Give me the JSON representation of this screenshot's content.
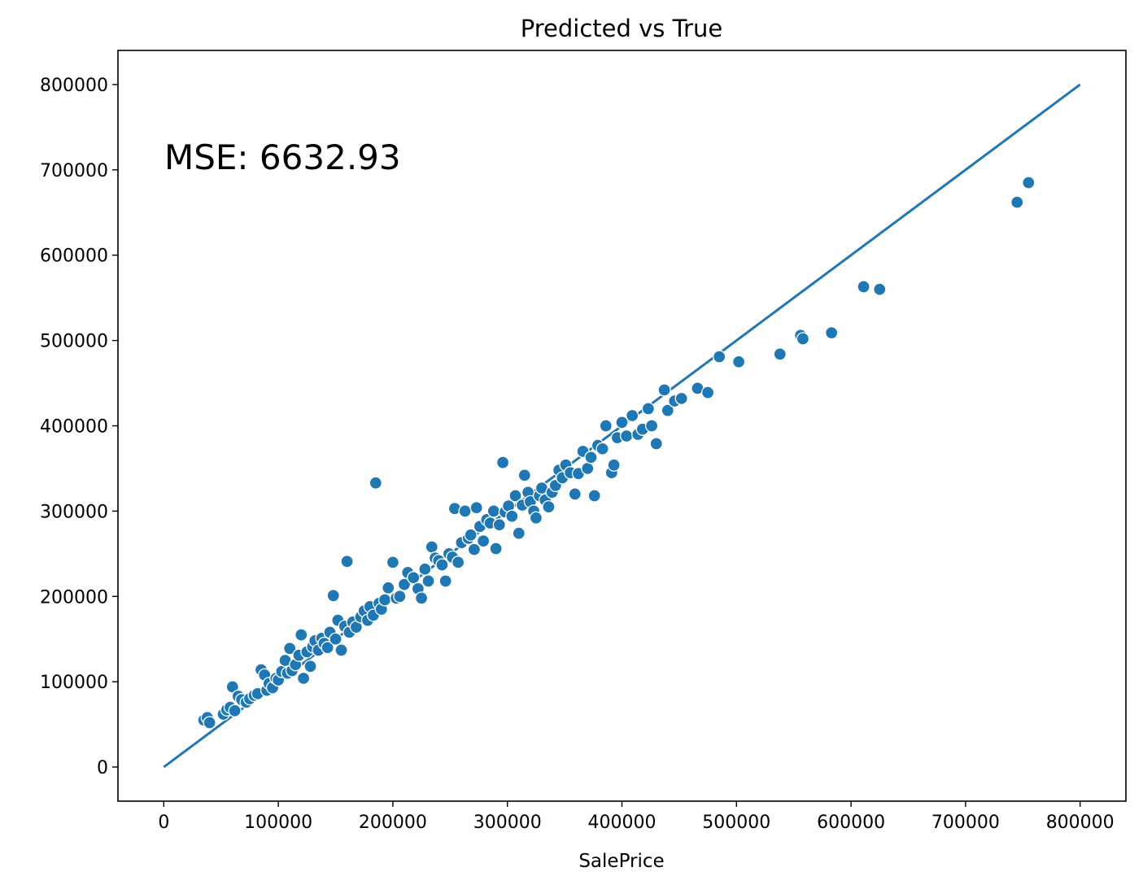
{
  "chart_data": {
    "type": "scatter",
    "title": "Predicted vs True",
    "xlabel": "SalePrice",
    "ylabel": "",
    "xlim": [
      -40000,
      840000
    ],
    "ylim": [
      -40000,
      840000
    ],
    "x_ticks": [
      0,
      100000,
      200000,
      300000,
      400000,
      500000,
      600000,
      700000,
      800000
    ],
    "y_ticks": [
      0,
      100000,
      200000,
      300000,
      400000,
      500000,
      600000,
      700000,
      800000
    ],
    "x_tick_labels": [
      "0",
      "100000",
      "200000",
      "300000",
      "400000",
      "500000",
      "600000",
      "700000",
      "800000"
    ],
    "y_tick_labels": [
      "0",
      "100000",
      "200000",
      "300000",
      "400000",
      "500000",
      "600000",
      "700000",
      "800000"
    ],
    "annotation": "MSE: 6632.93",
    "grid": false,
    "reference_line": {
      "x": [
        0,
        800000
      ],
      "y": [
        0,
        800000
      ]
    },
    "colors": {
      "points": "#1f77b4",
      "line": "#1f77b4"
    },
    "points": [
      [
        35000,
        55000
      ],
      [
        38000,
        58000
      ],
      [
        40000,
        52000
      ],
      [
        52000,
        62000
      ],
      [
        55000,
        67000
      ],
      [
        58000,
        70000
      ],
      [
        60000,
        94000
      ],
      [
        62000,
        66000
      ],
      [
        65000,
        83000
      ],
      [
        68000,
        79000
      ],
      [
        72000,
        76000
      ],
      [
        75000,
        80000
      ],
      [
        79000,
        84000
      ],
      [
        82000,
        86000
      ],
      [
        85000,
        114000
      ],
      [
        88000,
        108000
      ],
      [
        90000,
        90000
      ],
      [
        92000,
        98000
      ],
      [
        95000,
        93000
      ],
      [
        98000,
        104000
      ],
      [
        100000,
        102000
      ],
      [
        103000,
        112000
      ],
      [
        106000,
        125000
      ],
      [
        108000,
        110000
      ],
      [
        110000,
        139000
      ],
      [
        112000,
        113000
      ],
      [
        115000,
        120000
      ],
      [
        118000,
        131000
      ],
      [
        120000,
        155000
      ],
      [
        122000,
        104000
      ],
      [
        125000,
        135000
      ],
      [
        128000,
        118000
      ],
      [
        130000,
        141000
      ],
      [
        132000,
        148000
      ],
      [
        135000,
        137000
      ],
      [
        138000,
        151000
      ],
      [
        140000,
        145000
      ],
      [
        143000,
        140000
      ],
      [
        145000,
        158000
      ],
      [
        148000,
        201000
      ],
      [
        150000,
        150000
      ],
      [
        152000,
        172000
      ],
      [
        155000,
        137000
      ],
      [
        158000,
        165000
      ],
      [
        160000,
        241000
      ],
      [
        162000,
        158000
      ],
      [
        165000,
        170000
      ],
      [
        168000,
        164000
      ],
      [
        172000,
        176000
      ],
      [
        175000,
        183000
      ],
      [
        178000,
        172000
      ],
      [
        180000,
        188000
      ],
      [
        183000,
        178000
      ],
      [
        185000,
        333000
      ],
      [
        188000,
        192000
      ],
      [
        190000,
        185000
      ],
      [
        193000,
        196000
      ],
      [
        196000,
        210000
      ],
      [
        200000,
        240000
      ],
      [
        203000,
        198000
      ],
      [
        206000,
        200000
      ],
      [
        210000,
        214000
      ],
      [
        213000,
        228000
      ],
      [
        218000,
        222000
      ],
      [
        222000,
        209000
      ],
      [
        225000,
        198000
      ],
      [
        228000,
        232000
      ],
      [
        231000,
        218000
      ],
      [
        234000,
        258000
      ],
      [
        237000,
        245000
      ],
      [
        240000,
        242000
      ],
      [
        243000,
        237000
      ],
      [
        246000,
        218000
      ],
      [
        249000,
        250000
      ],
      [
        252000,
        246000
      ],
      [
        254000,
        303000
      ],
      [
        257000,
        240000
      ],
      [
        260000,
        263000
      ],
      [
        263000,
        300000
      ],
      [
        266000,
        268000
      ],
      [
        268000,
        272000
      ],
      [
        271000,
        255000
      ],
      [
        273000,
        304000
      ],
      [
        276000,
        282000
      ],
      [
        279000,
        265000
      ],
      [
        282000,
        290000
      ],
      [
        285000,
        286000
      ],
      [
        288000,
        300000
      ],
      [
        290000,
        256000
      ],
      [
        293000,
        284000
      ],
      [
        296000,
        357000
      ],
      [
        298000,
        299000
      ],
      [
        301000,
        306000
      ],
      [
        304000,
        294000
      ],
      [
        307000,
        318000
      ],
      [
        310000,
        274000
      ],
      [
        313000,
        307000
      ],
      [
        315000,
        342000
      ],
      [
        318000,
        322000
      ],
      [
        320000,
        311000
      ],
      [
        323000,
        300000
      ],
      [
        325000,
        292000
      ],
      [
        328000,
        318000
      ],
      [
        330000,
        327000
      ],
      [
        333000,
        313000
      ],
      [
        336000,
        305000
      ],
      [
        339000,
        322000
      ],
      [
        342000,
        330000
      ],
      [
        345000,
        348000
      ],
      [
        348000,
        339000
      ],
      [
        351000,
        354000
      ],
      [
        355000,
        345000
      ],
      [
        359000,
        320000
      ],
      [
        362000,
        344000
      ],
      [
        366000,
        370000
      ],
      [
        370000,
        350000
      ],
      [
        373000,
        363000
      ],
      [
        376000,
        318000
      ],
      [
        379000,
        377000
      ],
      [
        383000,
        373000
      ],
      [
        386000,
        400000
      ],
      [
        391000,
        345000
      ],
      [
        393000,
        354000
      ],
      [
        396000,
        386000
      ],
      [
        400000,
        404000
      ],
      [
        404000,
        388000
      ],
      [
        409000,
        412000
      ],
      [
        414000,
        390000
      ],
      [
        418000,
        396000
      ],
      [
        423000,
        420000
      ],
      [
        426000,
        400000
      ],
      [
        430000,
        379000
      ],
      [
        437000,
        442000
      ],
      [
        440000,
        418000
      ],
      [
        446000,
        429000
      ],
      [
        452000,
        432000
      ],
      [
        466000,
        444000
      ],
      [
        475000,
        439000
      ],
      [
        485000,
        481000
      ],
      [
        502000,
        475000
      ],
      [
        538000,
        484000
      ],
      [
        556000,
        506000
      ],
      [
        558000,
        502000
      ],
      [
        583000,
        509000
      ],
      [
        611000,
        563000
      ],
      [
        625000,
        560000
      ],
      [
        745000,
        662000
      ],
      [
        755000,
        685000
      ]
    ]
  }
}
